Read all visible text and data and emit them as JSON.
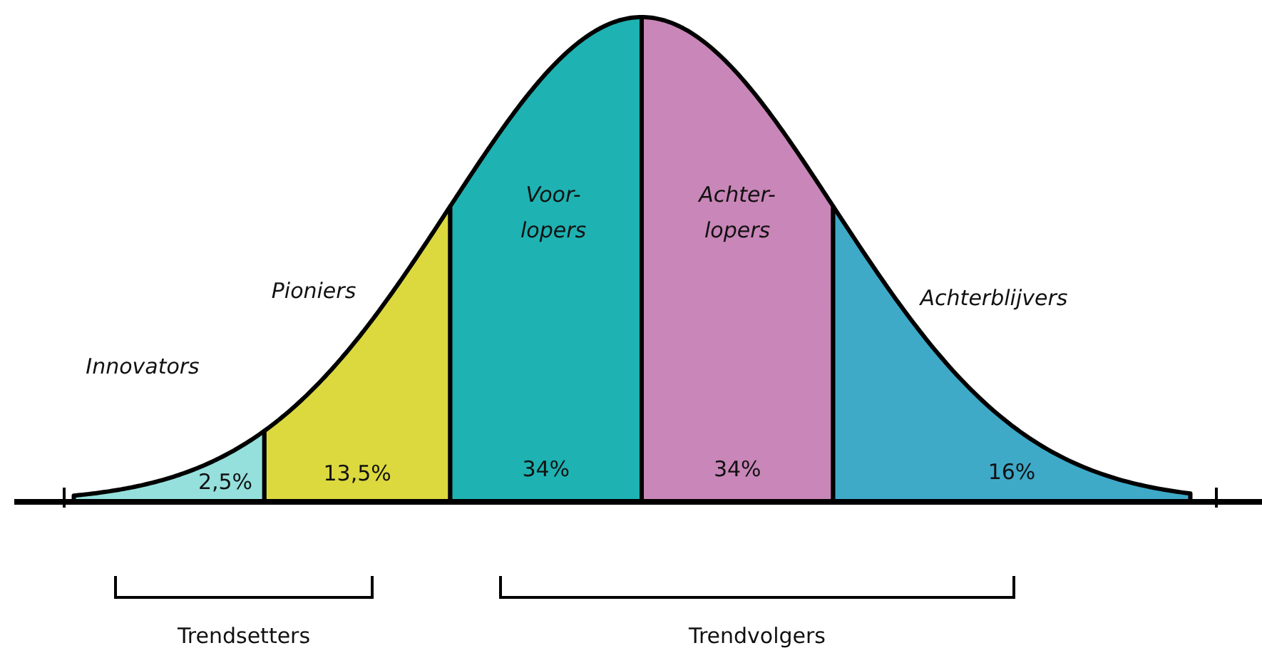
{
  "chart_data": {
    "type": "other",
    "categories": [
      "Innovators",
      "Pioniers",
      "Voor-lopers",
      "Achter-lopers",
      "Achterblijvers"
    ],
    "values": [
      2.5,
      13.5,
      34,
      34,
      16
    ],
    "colors": [
      "#95e0dc",
      "#dcd93f",
      "#1fb2b2",
      "#c986b8",
      "#3fa9c8"
    ],
    "value_labels": [
      "2,5%",
      "13,5%",
      "34%",
      "34%",
      "16%"
    ],
    "annotations": [
      "Trendsetters",
      "Trendvolgers"
    ]
  }
}
